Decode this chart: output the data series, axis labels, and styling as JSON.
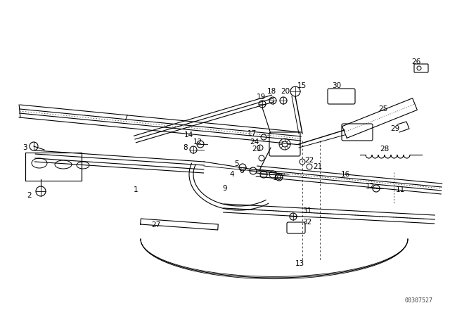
{
  "bg_color": "#ffffff",
  "line_color": "#000000",
  "fig_width": 6.4,
  "fig_height": 4.48,
  "dpi": 100,
  "watermark": "00307527"
}
